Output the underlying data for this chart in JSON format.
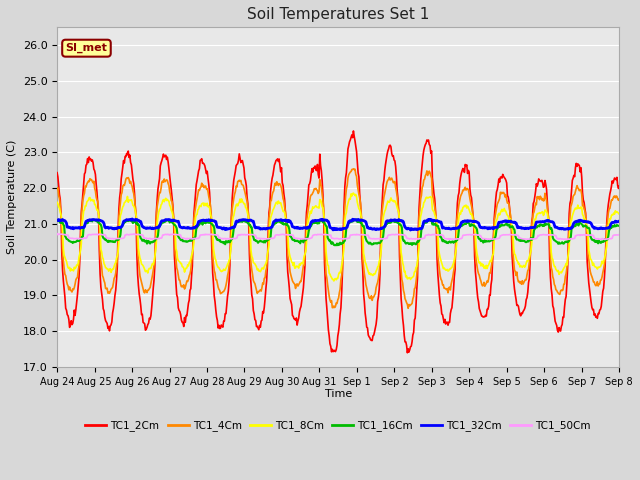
{
  "title": "Soil Temperatures Set 1",
  "xlabel": "Time",
  "ylabel": "Soil Temperature (C)",
  "ylim": [
    17.0,
    26.5
  ],
  "yticks": [
    17.0,
    18.0,
    19.0,
    20.0,
    21.0,
    22.0,
    23.0,
    24.0,
    25.0,
    26.0
  ],
  "fig_bg_color": "#d8d8d8",
  "plot_bg_color": "#e8e8e8",
  "annotation_text": "SI_met",
  "annotation_color": "#8B0000",
  "annotation_bg": "#ffff99",
  "annotation_border": "#8B0000",
  "series_colors": [
    "#ff0000",
    "#ff8800",
    "#ffff00",
    "#00bb00",
    "#0000ff",
    "#ff99ff"
  ],
  "series_labels": [
    "TC1_2Cm",
    "TC1_4Cm",
    "TC1_8Cm",
    "TC1_16Cm",
    "TC1_32Cm",
    "TC1_50Cm"
  ],
  "series_lw": [
    1.2,
    1.2,
    1.2,
    1.5,
    2.0,
    1.2
  ],
  "tick_labels": [
    "Aug 24",
    "Aug 25",
    "Aug 26",
    "Aug 27",
    "Aug 28",
    "Aug 29",
    "Aug 30",
    "Aug 31",
    "Sep 1",
    "Sep 2",
    "Sep 3",
    "Sep 4",
    "Sep 5",
    "Sep 6",
    "Sep 7",
    "Sep 8"
  ],
  "n_days": 15,
  "pts_per_day": 48
}
